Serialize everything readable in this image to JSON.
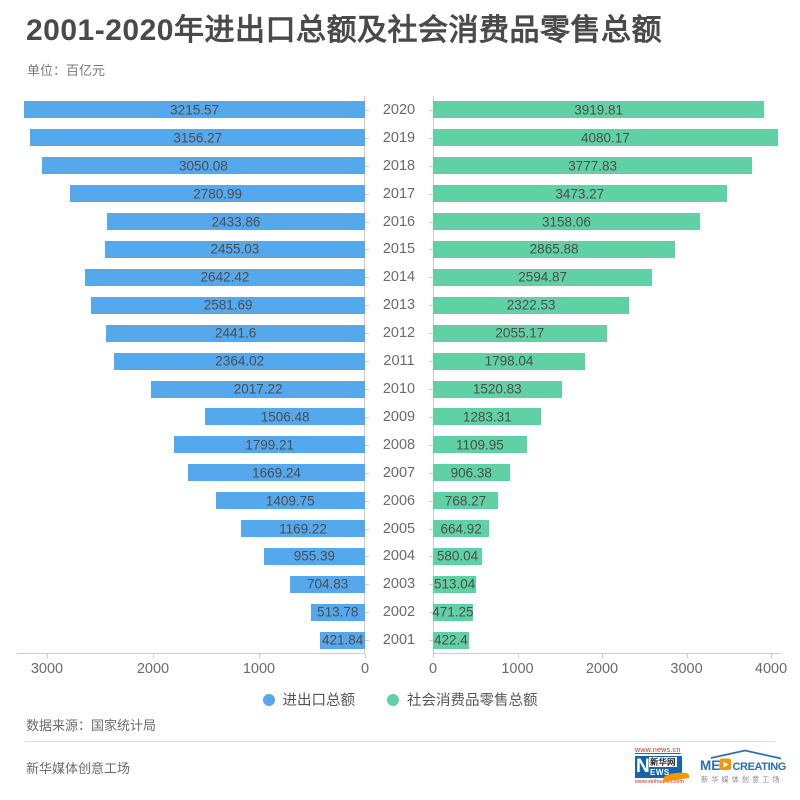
{
  "header": {
    "title": "2001-2020年进出口总额及社会消费品零售总额",
    "unit": "单位：百亿元"
  },
  "chart_data": {
    "type": "bar",
    "subtype": "diverging-horizontal-tornado",
    "title": "2001-2020年进出口总额及社会消费品零售总额",
    "unit_label": "单位：百亿元",
    "years": [
      "2020",
      "2019",
      "2018",
      "2017",
      "2016",
      "2015",
      "2014",
      "2013",
      "2012",
      "2011",
      "2010",
      "2009",
      "2008",
      "2007",
      "2006",
      "2005",
      "2004",
      "2003",
      "2002",
      "2001"
    ],
    "series": [
      {
        "name": "进出口总额",
        "side": "left",
        "color": "#55a8ec",
        "values": [
          3215.57,
          3156.27,
          3050.08,
          2780.99,
          2433.86,
          2455.03,
          2642.42,
          2581.69,
          2441.6,
          2364.02,
          2017.22,
          1506.48,
          1799.21,
          1669.24,
          1409.75,
          1169.22,
          955.39,
          704.83,
          513.78,
          421.84
        ]
      },
      {
        "name": "社会消费品零售总额",
        "side": "right",
        "color": "#60d1a5",
        "values": [
          3919.81,
          4080.17,
          3777.83,
          3473.27,
          3158.06,
          2865.88,
          2594.87,
          2322.53,
          2055.17,
          1798.04,
          1520.83,
          1283.31,
          1109.95,
          906.38,
          768.27,
          664.92,
          580.04,
          513.04,
          471.25,
          422.4
        ]
      }
    ],
    "left_axis": {
      "ticks": [
        3000,
        2000,
        1000,
        0
      ],
      "scale_max": 3283,
      "direction": "right-to-left"
    },
    "right_axis": {
      "ticks": [
        0,
        1000,
        2000,
        3000,
        4000
      ],
      "scale_max": 4118,
      "direction": "left-to-right"
    },
    "grid": false,
    "legend_position": "bottom-center"
  },
  "footer": {
    "source": "数据来源：国家统计局",
    "brand": "新华媒体创意工场"
  },
  "logos": {
    "xinhua": {
      "top_url": "www.news.cn",
      "n": "N",
      "cn": "新华网",
      "ews": "EWS",
      "bottom_url": "www.xinhuanet.com"
    },
    "med": {
      "me": "ME",
      "creating": "CREATING",
      "cn": "新华媒体创意工场"
    }
  }
}
